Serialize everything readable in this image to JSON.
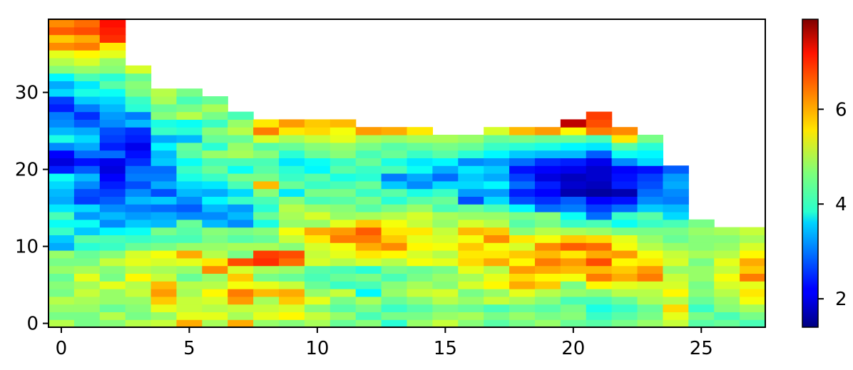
{
  "chart_data": {
    "type": "heatmap",
    "colormap": "jet",
    "x_ticks": [
      0,
      5,
      10,
      15,
      20,
      25
    ],
    "y_ticks": [
      0,
      10,
      20,
      30
    ],
    "colorbar_ticks": [
      2,
      4,
      6
    ],
    "xlim": [
      -0.5,
      27.5
    ],
    "ylim": [
      -0.5,
      39.5
    ],
    "clim": [
      1.4,
      7.9
    ],
    "grid": false,
    "n_cols": 28,
    "column_heights": [
      40,
      40,
      40,
      34,
      31,
      31,
      30,
      28,
      27,
      27,
      27,
      27,
      26,
      26,
      26,
      25,
      25,
      26,
      26,
      26,
      27,
      28,
      26,
      25,
      21,
      14,
      13,
      13
    ],
    "column_values": [
      [
        5.0,
        4.6,
        4.8,
        5.0,
        4.6,
        4.7,
        4.5,
        4.8,
        4.6,
        4.8,
        3.3,
        3.5,
        4.2,
        3.9,
        4.3,
        3.7,
        3.3,
        3.4,
        3.6,
        3.9,
        2.4,
        2.0,
        2.2,
        3.1,
        4.0,
        3.4,
        3.1,
        3.0,
        2.4,
        2.6,
        3.6,
        3.3,
        3.8,
        4.7,
        5.0,
        5.3,
        6.2,
        5.8,
        6.5,
        6.2
      ],
      [
        4.6,
        4.6,
        4.8,
        4.9,
        5.1,
        4.9,
        5.3,
        4.9,
        4.6,
        4.5,
        4.1,
        4.4,
        3.5,
        3.9,
        3.2,
        3.6,
        2.6,
        2.7,
        3.1,
        3.4,
        2.8,
        2.3,
        2.9,
        3.3,
        3.6,
        3.3,
        2.8,
        2.5,
        3.0,
        3.5,
        4.0,
        3.7,
        4.3,
        4.8,
        5.2,
        5.5,
        6.3,
        6.0,
        6.6,
        6.4
      ],
      [
        4.7,
        5.0,
        4.5,
        4.8,
        4.8,
        5.3,
        4.6,
        4.7,
        5.1,
        4.7,
        4.2,
        4.3,
        3.8,
        3.1,
        3.4,
        3.1,
        2.8,
        2.6,
        2.4,
        2.2,
        2.0,
        2.1,
        2.9,
        2.4,
        2.6,
        2.7,
        3.1,
        3.2,
        3.4,
        3.6,
        3.9,
        4.4,
        4.1,
        4.7,
        4.8,
        5.3,
        5.6,
        6.8,
        6.9,
        7.0
      ],
      [
        5.0,
        4.6,
        4.7,
        4.8,
        5.1,
        5.0,
        5.5,
        5.0,
        5.3,
        5.2,
        4.5,
        4.2,
        3.9,
        3.5,
        3.2,
        3.0,
        3.4,
        3.1,
        2.7,
        3.0,
        2.9,
        2.5,
        2.3,
        2.1,
        2.4,
        2.5,
        3.4,
        3.0,
        4.1,
        4.2,
        4.6,
        4.7,
        4.5,
        5.2
      ],
      [
        5.1,
        4.8,
        5.3,
        5.8,
        6.1,
        5.9,
        5.1,
        4.9,
        5.2,
        5.4,
        4.6,
        4.3,
        4.6,
        3.4,
        3.3,
        2.9,
        3.5,
        2.7,
        3.3,
        3.0,
        2.9,
        3.5,
        3.4,
        3.8,
        3.3,
        4.2,
        4.0,
        4.7,
        4.5,
        4.9,
        5.0
      ],
      [
        6.0,
        5.3,
        5.1,
        5.1,
        4.9,
        5.0,
        4.5,
        4.8,
        5.3,
        6.0,
        4.8,
        4.3,
        4.4,
        4.5,
        3.1,
        2.8,
        3.1,
        3.4,
        3.6,
        4.0,
        4.2,
        3.9,
        4.4,
        4.5,
        3.4,
        4.1,
        3.9,
        5.0,
        4.6,
        4.3,
        4.6
      ],
      [
        4.9,
        5.3,
        5.0,
        5.2,
        5.5,
        5.0,
        4.8,
        6.2,
        5.6,
        5.0,
        4.8,
        4.6,
        4.7,
        3.4,
        3.1,
        3.4,
        3.8,
        3.3,
        3.7,
        4.2,
        4.5,
        4.3,
        4.8,
        4.1,
        4.5,
        4.7,
        4.2,
        4.6,
        4.9,
        4.5
      ],
      [
        6.0,
        4.9,
        5.1,
        6.1,
        6.3,
        5.4,
        5.8,
        5.2,
        6.6,
        4.6,
        4.9,
        4.4,
        4.6,
        3.1,
        3.4,
        3.2,
        4.2,
        3.6,
        4.3,
        4.6,
        3.9,
        4.3,
        4.9,
        4.8,
        4.5,
        5.0,
        4.8,
        4.3
      ],
      [
        4.8,
        5.3,
        5.1,
        4.9,
        5.9,
        5.3,
        4.6,
        4.9,
        6.8,
        6.7,
        4.9,
        4.5,
        4.7,
        4.0,
        4.5,
        4.1,
        4.3,
        4.7,
        5.9,
        4.6,
        4.4,
        4.3,
        4.7,
        4.4,
        5.2,
        6.3,
        5.6
      ],
      [
        4.7,
        5.5,
        5.2,
        5.8,
        6.0,
        5.1,
        4.5,
        4.8,
        6.4,
        6.6,
        4.7,
        5.1,
        5.4,
        4.8,
        4.9,
        5.0,
        4.7,
        3.7,
        4.5,
        4.2,
        4.1,
        3.7,
        4.1,
        4.5,
        4.9,
        5.6,
        6.1
      ],
      [
        4.9,
        5.1,
        4.7,
        5.3,
        4.8,
        4.5,
        4.3,
        4.4,
        5.2,
        5.1,
        5.2,
        5.6,
        6.0,
        4.8,
        5.2,
        4.8,
        4.3,
        4.6,
        4.2,
        4.4,
        3.8,
        3.9,
        4.5,
        4.7,
        5.1,
        5.7,
        5.8
      ],
      [
        4.5,
        4.8,
        4.4,
        4.6,
        5.1,
        4.2,
        4.5,
        4.3,
        5.0,
        5.3,
        5.4,
        6.3,
        6.1,
        5.3,
        4.8,
        4.7,
        4.4,
        4.6,
        4.3,
        4.0,
        4.4,
        4.2,
        4.7,
        4.8,
        5.3,
        5.4,
        5.9
      ],
      [
        4.7,
        4.3,
        4.6,
        4.9,
        3.8,
        4.3,
        4.6,
        4.1,
        5.2,
        5.6,
        6.0,
        6.3,
        6.5,
        5.8,
        4.9,
        4.4,
        4.6,
        4.2,
        4.5,
        4.1,
        4.2,
        4.5,
        4.3,
        4.6,
        4.9,
        6.1
      ],
      [
        4.1,
        4.6,
        4.2,
        4.5,
        4.8,
        4.7,
        4.3,
        4.6,
        5.0,
        5.5,
        6.2,
        5.8,
        5.6,
        5.4,
        5.0,
        4.6,
        4.1,
        4.4,
        3.5,
        3.0,
        4.3,
        4.0,
        4.5,
        4.4,
        4.8,
        6.0
      ],
      [
        4.8,
        4.6,
        4.4,
        4.7,
        5.1,
        4.9,
        4.6,
        4.5,
        5.4,
        5.2,
        5.5,
        5.3,
        5.6,
        5.1,
        5.2,
        4.8,
        4.4,
        4.0,
        3.1,
        3.3,
        3.9,
        3.7,
        4.2,
        4.5,
        4.9,
        5.6
      ],
      [
        5.1,
        4.8,
        4.6,
        5.0,
        5.2,
        4.7,
        4.8,
        4.6,
        5.3,
        5.0,
        5.4,
        5.2,
        5.1,
        4.8,
        4.9,
        4.3,
        4.5,
        4.2,
        3.6,
        2.9,
        3.3,
        3.8,
        4.4,
        4.6,
        4.9
      ],
      [
        4.7,
        4.9,
        4.5,
        4.8,
        4.6,
        5.2,
        4.9,
        5.3,
        5.7,
        5.6,
        5.8,
        5.4,
        5.9,
        5.2,
        4.8,
        4.5,
        2.7,
        3.2,
        3.6,
        3.5,
        3.7,
        3.1,
        4.1,
        4.5,
        4.8
      ],
      [
        4.4,
        4.6,
        4.3,
        5.1,
        4.8,
        5.5,
        5.3,
        5.0,
        6.0,
        5.6,
        5.4,
        6.2,
        5.8,
        5.0,
        4.8,
        4.3,
        3.6,
        3.2,
        3.8,
        3.3,
        3.5,
        3.2,
        3.8,
        4.2,
        4.5,
        5.2
      ],
      [
        4.6,
        4.8,
        4.5,
        4.9,
        5.3,
        6.0,
        5.7,
        6.1,
        5.5,
        5.8,
        5.2,
        5.6,
        4.7,
        4.4,
        4.6,
        3.8,
        2.7,
        2.4,
        2.9,
        2.6,
        2.3,
        2.9,
        3.5,
        4.1,
        4.6,
        5.9
      ],
      [
        4.8,
        4.6,
        4.4,
        4.7,
        5.0,
        5.8,
        5.5,
        6.0,
        6.3,
        5.9,
        6.2,
        5.4,
        5.0,
        4.6,
        4.7,
        2.9,
        2.5,
        2.2,
        2.4,
        2.0,
        2.2,
        2.5,
        3.4,
        4.0,
        4.5,
        6.1
      ],
      [
        4.5,
        4.7,
        4.6,
        4.3,
        4.8,
        4.6,
        5.4,
        5.9,
        6.1,
        5.6,
        6.5,
        5.8,
        4.9,
        4.2,
        3.9,
        3.0,
        2.8,
        1.7,
        1.9,
        1.8,
        2.1,
        2.4,
        3.4,
        3.8,
        4.5,
        5.5,
        7.5
      ],
      [
        4.4,
        4.2,
        4.0,
        4.3,
        4.7,
        5.5,
        6.3,
        5.9,
        6.6,
        6.0,
        6.4,
        5.7,
        4.8,
        4.3,
        2.9,
        2.6,
        2.2,
        1.6,
        1.8,
        1.9,
        1.9,
        2.1,
        2.8,
        3.7,
        4.3,
        6.3,
        6.6,
        6.7
      ],
      [
        4.6,
        4.4,
        4.2,
        4.5,
        5.0,
        5.3,
        6.0,
        5.8,
        5.5,
        6.1,
        5.4,
        5.3,
        4.6,
        3.9,
        4.2,
        2.9,
        2.3,
        1.7,
        2.4,
        2.3,
        2.2,
        3.1,
        3.9,
        4.4,
        5.6,
        6.2
      ],
      [
        4.8,
        4.6,
        4.5,
        4.9,
        5.0,
        5.2,
        6.3,
        6.1,
        5.6,
        5.4,
        5.0,
        4.8,
        4.6,
        4.2,
        4.4,
        3.5,
        3.1,
        2.9,
        2.7,
        2.6,
        2.3,
        3.6,
        3.8,
        4.1,
        4.6
      ],
      [
        5.1,
        5.3,
        5.7,
        5.0,
        5.5,
        5.2,
        5.1,
        4.8,
        5.2,
        5.1,
        4.8,
        4.5,
        4.6,
        4.3,
        3.6,
        3.4,
        3.0,
        3.1,
        3.3,
        3.2,
        2.8
      ],
      [
        4.4,
        4.6,
        4.2,
        4.5,
        4.7,
        4.6,
        4.8,
        4.8,
        4.6,
        4.9,
        4.7,
        4.7,
        4.8,
        4.6
      ],
      [
        4.5,
        4.3,
        4.7,
        4.8,
        5.0,
        5.2,
        5.4,
        5.1,
        5.3,
        5.0,
        4.8,
        4.7,
        4.9
      ],
      [
        4.3,
        4.6,
        4.9,
        5.4,
        5.6,
        5.3,
        6.3,
        5.8,
        6.0,
        5.5,
        5.2,
        4.9,
        5.1
      ]
    ]
  }
}
